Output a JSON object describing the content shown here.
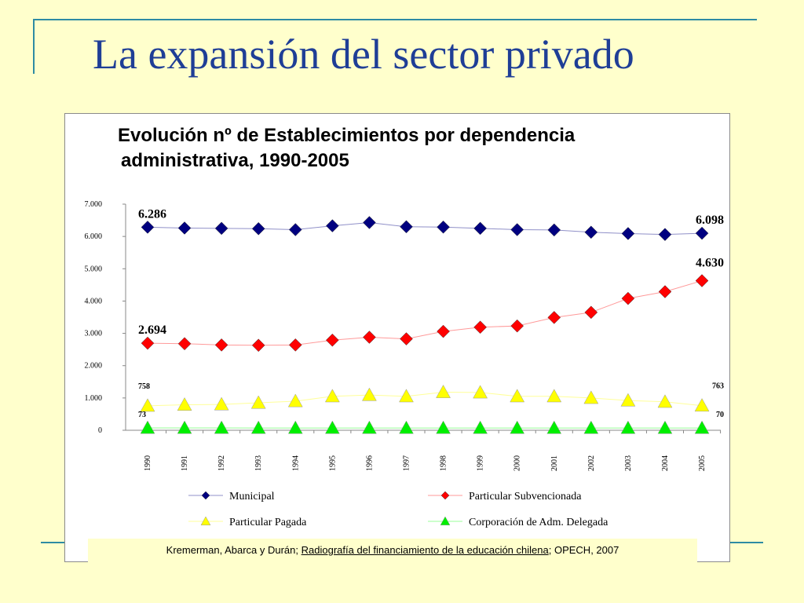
{
  "slide": {
    "title": "La expansión del sector privado"
  },
  "source": {
    "authors": "Kremerman, Abarca y Durán; ",
    "work": "Radiografía del financiamiento de la educación chilena",
    "rest": "; OPECH, 2007"
  },
  "chart_data": {
    "type": "line",
    "title_line1": "Evolución nº de Establecimientos por dependencia",
    "title_line2": "administrativa, 1990-2005",
    "x": [
      "1990",
      "1991",
      "1992",
      "1993",
      "1994",
      "1995",
      "1996",
      "1997",
      "1998",
      "1999",
      "2000",
      "2001",
      "2002",
      "2003",
      "2004",
      "2005"
    ],
    "ylim": [
      0,
      7000
    ],
    "yticks": [
      0,
      1000,
      2000,
      3000,
      4000,
      5000,
      6000,
      7000
    ],
    "ytick_labels": [
      "0",
      "1.000",
      "2.000",
      "3.000",
      "4.000",
      "5.000",
      "6.000",
      "7.000"
    ],
    "legend_placement": "bottom",
    "series": [
      {
        "name": "Municipal",
        "marker": "diamond",
        "color": "#000080",
        "line_color": "#9090c8",
        "values": [
          6286,
          6260,
          6250,
          6240,
          6210,
          6330,
          6430,
          6300,
          6290,
          6250,
          6210,
          6200,
          6130,
          6090,
          6060,
          6098
        ]
      },
      {
        "name": "Particular Subvencionada",
        "marker": "diamond",
        "color": "#ff0000",
        "line_color": "#ff9a9a",
        "values": [
          2694,
          2680,
          2640,
          2630,
          2640,
          2790,
          2880,
          2830,
          3060,
          3190,
          3230,
          3490,
          3650,
          4080,
          4290,
          4630
        ]
      },
      {
        "name": "Particular Pagada",
        "marker": "triangle",
        "color": "#ffff00",
        "line_color": "#ffff99",
        "values": [
          758,
          790,
          800,
          850,
          900,
          1050,
          1090,
          1050,
          1180,
          1170,
          1050,
          1050,
          1000,
          920,
          880,
          763
        ]
      },
      {
        "name": "Corporación de Adm. Delegada",
        "marker": "triangle",
        "color": "#00ee00",
        "line_color": "#99ff99",
        "values": [
          73,
          72,
          72,
          71,
          71,
          71,
          71,
          71,
          71,
          71,
          71,
          70,
          70,
          70,
          70,
          70
        ]
      }
    ],
    "annotations": [
      {
        "series": 0,
        "index": 0,
        "text": "6.286"
      },
      {
        "series": 0,
        "index": 15,
        "text": "6.098"
      },
      {
        "series": 1,
        "index": 0,
        "text": "2.694"
      },
      {
        "series": 1,
        "index": 15,
        "text": "4.630"
      },
      {
        "series": 2,
        "index": 0,
        "text": "758"
      },
      {
        "series": 2,
        "index": 15,
        "text": "763"
      },
      {
        "series": 3,
        "index": 0,
        "text": "73"
      },
      {
        "series": 3,
        "index": 15,
        "text": "70"
      }
    ]
  }
}
